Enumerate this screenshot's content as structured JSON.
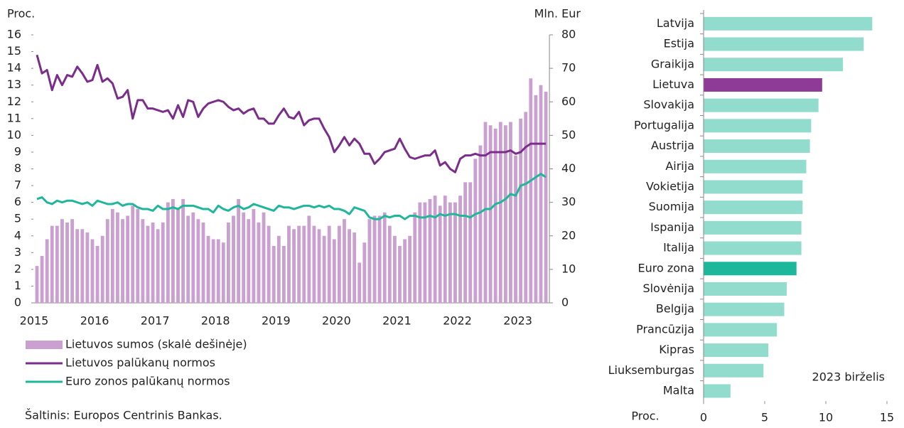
{
  "chart_data": [
    {
      "type": "combo",
      "ylabel": "Proc.",
      "y2label": "Mln. Eur",
      "categories": [
        "2015",
        null,
        null,
        null,
        null,
        null,
        null,
        null,
        null,
        null,
        null,
        null,
        "2016",
        null,
        null,
        null,
        null,
        null,
        null,
        null,
        null,
        null,
        null,
        null,
        "2017",
        null,
        null,
        null,
        null,
        null,
        null,
        null,
        null,
        null,
        null,
        null,
        "2018",
        null,
        null,
        null,
        null,
        null,
        null,
        null,
        null,
        null,
        null,
        null,
        "2019",
        null,
        null,
        null,
        null,
        null,
        null,
        null,
        null,
        null,
        null,
        null,
        "2020",
        null,
        null,
        null,
        null,
        null,
        null,
        null,
        null,
        null,
        null,
        null,
        "2021",
        null,
        null,
        null,
        null,
        null,
        null,
        null,
        null,
        null,
        null,
        null,
        "2022",
        null,
        null,
        null,
        null,
        null,
        null,
        null,
        null,
        null,
        null,
        null,
        "2023",
        null,
        null,
        null,
        null,
        null
      ],
      "series": [
        {
          "name": "Lietuvos sumos (skalė dešinėje)",
          "type": "bar",
          "axis": "y2",
          "color": "#c9a0cf",
          "values": [
            11,
            14,
            19,
            23,
            23,
            25,
            24,
            25,
            22,
            22,
            21,
            19,
            17,
            20,
            25,
            28,
            27,
            25,
            26,
            29,
            28,
            25,
            23,
            24,
            22,
            24,
            30,
            31,
            28,
            31,
            26,
            27,
            25,
            24,
            20,
            19,
            19,
            18,
            24,
            26,
            31,
            27,
            25,
            28,
            24,
            27,
            23,
            17,
            20,
            17,
            23,
            22,
            23,
            23,
            26,
            23,
            22,
            20,
            23,
            19,
            23,
            25,
            22,
            21,
            12,
            18,
            25,
            26,
            26,
            27,
            23,
            20,
            17,
            19,
            20,
            27,
            30,
            30,
            31,
            32,
            29,
            32,
            30,
            30,
            32,
            36,
            36,
            43,
            47,
            54,
            53,
            52,
            54,
            53,
            54,
            44,
            55,
            57,
            67,
            62,
            65,
            63
          ]
        },
        {
          "name": "Lietuvos palūkanų normos",
          "type": "line",
          "color": "#7b2d8b",
          "values": [
            14.8,
            13.7,
            13.9,
            12.7,
            13.6,
            13.0,
            13.6,
            13.5,
            14.1,
            13.7,
            13.2,
            13.3,
            14.2,
            13.2,
            13.4,
            13.1,
            12.2,
            12.3,
            12.7,
            11.0,
            12.1,
            12.1,
            11.6,
            11.6,
            11.5,
            11.4,
            11.5,
            11.0,
            11.8,
            11.1,
            12.1,
            12.0,
            11.1,
            11.6,
            11.9,
            12.0,
            12.1,
            12.0,
            11.7,
            11.5,
            11.6,
            11.3,
            11.5,
            11.6,
            11.0,
            11.0,
            10.7,
            10.7,
            11.2,
            11.6,
            11.1,
            11.0,
            11.4,
            10.6,
            10.9,
            11.0,
            11.0,
            10.4,
            9.9,
            9.0,
            9.4,
            9.9,
            9.4,
            9.8,
            9.5,
            8.9,
            8.9,
            8.3,
            8.6,
            9.0,
            9.1,
            9.2,
            9.8,
            9.2,
            8.7,
            8.6,
            8.7,
            8.8,
            8.8,
            9.1,
            8.2,
            8.4,
            8.0,
            7.8,
            8.6,
            8.8,
            8.8,
            8.9,
            8.8,
            8.8,
            9.0,
            9.0,
            9.0,
            9.0,
            9.1,
            8.9,
            9.0,
            9.3,
            9.5,
            9.5,
            9.5,
            9.5
          ]
        },
        {
          "name": "Euro zonos palūkanų normos",
          "type": "line",
          "color": "#20b69b",
          "values": [
            6.2,
            6.3,
            6.0,
            5.9,
            6.1,
            6.0,
            6.1,
            6.1,
            6.0,
            5.9,
            6.0,
            5.8,
            6.1,
            6.0,
            5.9,
            5.9,
            6.0,
            5.8,
            5.9,
            5.9,
            5.7,
            5.6,
            5.6,
            5.5,
            5.8,
            5.6,
            5.6,
            5.7,
            5.6,
            5.8,
            5.8,
            5.8,
            5.7,
            5.6,
            5.6,
            5.4,
            5.8,
            5.6,
            5.5,
            5.7,
            5.8,
            5.6,
            5.7,
            5.9,
            5.8,
            5.7,
            5.6,
            5.5,
            5.8,
            5.7,
            5.7,
            5.6,
            5.7,
            5.8,
            5.8,
            5.7,
            5.8,
            5.7,
            5.8,
            5.6,
            5.6,
            5.5,
            5.3,
            5.7,
            5.6,
            5.5,
            5.1,
            5.0,
            5.0,
            5.2,
            5.1,
            5.2,
            5.2,
            5.0,
            5.2,
            5.2,
            5.1,
            5.1,
            5.2,
            5.1,
            5.3,
            5.2,
            5.3,
            5.3,
            5.2,
            5.2,
            5.1,
            5.3,
            5.4,
            5.6,
            5.6,
            5.9,
            6.0,
            6.2,
            6.5,
            6.4,
            7.0,
            7.1,
            7.3,
            7.5,
            7.7,
            7.5
          ]
        }
      ],
      "ylim": [
        0,
        16
      ],
      "yticks": [
        0,
        1,
        2,
        3,
        4,
        5,
        6,
        7,
        8,
        9,
        10,
        11,
        12,
        13,
        14,
        15,
        16
      ],
      "y2lim": [
        0,
        80
      ],
      "y2ticks": [
        0,
        10,
        20,
        30,
        40,
        50,
        60,
        70,
        80
      ],
      "source": "Šaltinis: Europos Centrinis Bankas."
    },
    {
      "type": "barh",
      "categories": [
        "Latvija",
        "Estija",
        "Graikija",
        "Lietuva",
        "Slovakija",
        "Portugalija",
        "Austrija",
        "Airija",
        "Vokietija",
        "Suomija",
        "Ispanija",
        "Italija",
        "Euro zona",
        "Slovėnija",
        "Belgija",
        "Prancūzija",
        "Kipras",
        "Liuksemburgas",
        "Malta"
      ],
      "values": [
        13.8,
        13.1,
        11.4,
        9.7,
        9.4,
        8.8,
        8.7,
        8.4,
        8.1,
        8.1,
        8.0,
        8.0,
        7.6,
        6.8,
        6.6,
        6.0,
        5.3,
        4.9,
        2.2
      ],
      "colors": [
        "#91dccd",
        "#91dccd",
        "#91dccd",
        "#8e3b97",
        "#91dccd",
        "#91dccd",
        "#91dccd",
        "#91dccd",
        "#91dccd",
        "#91dccd",
        "#91dccd",
        "#91dccd",
        "#1db89c",
        "#91dccd",
        "#91dccd",
        "#91dccd",
        "#91dccd",
        "#91dccd",
        "#91dccd"
      ],
      "xlim": [
        0,
        15
      ],
      "xticks": [
        0,
        5,
        10,
        15
      ],
      "xlabel": "Proc.",
      "annotation": "2023 birželis"
    }
  ]
}
